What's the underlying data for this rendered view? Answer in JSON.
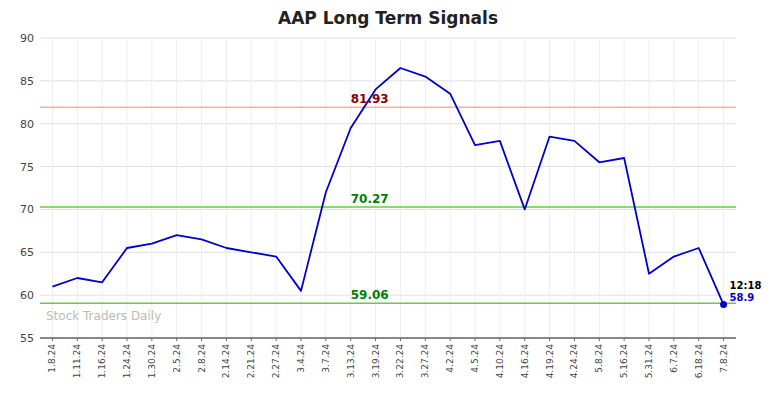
{
  "chart_data": {
    "type": "line",
    "title": "AAP Long Term Signals",
    "categories": [
      "1.8.24",
      "1.11.24",
      "1.16.24",
      "1.24.24",
      "1.30.24",
      "2.5.24",
      "2.8.24",
      "2.14.24",
      "2.21.24",
      "2.27.24",
      "3.4.24",
      "3.7.24",
      "3.13.24",
      "3.19.24",
      "3.22.24",
      "3.27.24",
      "4.2.24",
      "4.5.24",
      "4.10.24",
      "4.16.24",
      "4.19.24",
      "4.24.24",
      "5.8.24",
      "5.16.24",
      "5.31.24",
      "6.7.24",
      "6.18.24",
      "7.8.24"
    ],
    "values": [
      61.0,
      62.0,
      61.5,
      65.5,
      66.0,
      67.0,
      66.5,
      65.5,
      65.0,
      64.5,
      60.5,
      72.0,
      79.5,
      84.0,
      86.5,
      85.5,
      83.5,
      77.5,
      78.0,
      70.0,
      78.5,
      78.0,
      75.5,
      76.0,
      62.5,
      64.5,
      65.5,
      58.9
    ],
    "color": "#0000cc",
    "ylim": [
      55,
      90
    ],
    "yticks": [
      55,
      60,
      65,
      70,
      75,
      80,
      85,
      90
    ],
    "grid": true,
    "reference_lines": [
      {
        "value": 81.93,
        "label": "81.93",
        "color": "#ffaaaa",
        "label_color": "#8b0000"
      },
      {
        "value": 70.27,
        "label": "70.27",
        "color": "#66cc44",
        "label_color": "#008000"
      },
      {
        "value": 59.06,
        "label": "59.06",
        "color": "#66cc44",
        "label_color": "#008000"
      }
    ],
    "annotations": [
      "12:18",
      "58.9"
    ],
    "watermark": "Stock Traders Daily"
  }
}
